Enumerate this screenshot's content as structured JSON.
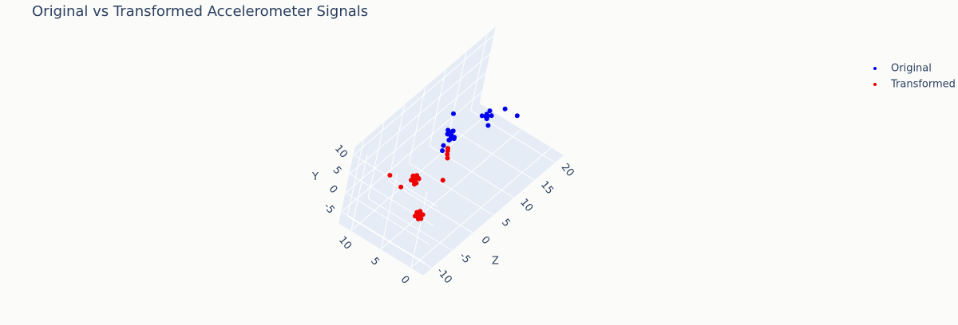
{
  "chart_data": {
    "type": "scatter3d",
    "title": "Original vs Transformed Accelerometer Signals",
    "yaxis_title": "Y",
    "zaxis_title": "Z",
    "xlim": [
      -2,
      12
    ],
    "ylim": [
      -8,
      12
    ],
    "zlim": [
      -12,
      22
    ],
    "xticks": [
      0,
      5,
      10
    ],
    "yticks": [
      -5,
      0,
      5,
      10
    ],
    "zticks": [
      -10,
      -5,
      0,
      5,
      10,
      15,
      20
    ],
    "series": [
      {
        "name": "Original",
        "color": "#0000ee",
        "x": [
          5,
          4.6,
          5.4,
          5.2,
          4.8,
          5.6,
          4.4,
          5.1,
          4.9,
          5.3,
          4.7,
          5.8,
          4.5,
          5.0,
          5,
          4.7,
          5.3,
          5.1,
          4.8,
          5.4,
          4.6,
          5.2,
          3,
          7,
          5,
          6,
          4,
          2
        ],
        "y": [
          9.3,
          9.0,
          9.6,
          8.8,
          9.8,
          9.1,
          9.5,
          9.9,
          8.7,
          9.4,
          9.2,
          9.6,
          8.9,
          10.2,
          5.8,
          6.1,
          5.5,
          6.3,
          5.4,
          6.0,
          5.7,
          5.2,
          8,
          10,
          3,
          4,
          11,
          6
        ],
        "z": [
          1.6,
          1.9,
          1.3,
          2.1,
          1.2,
          1.8,
          1.5,
          2.2,
          1.1,
          2.4,
          0.9,
          2.0,
          1.7,
          1.4,
          11.1,
          10.6,
          11.5,
          11.8,
          10.8,
          10.4,
          11.6,
          11.2,
          8,
          5,
          16,
          2,
          -2,
          14
        ]
      },
      {
        "name": "Transformed",
        "color": "#ee0000",
        "x": [
          6.4,
          6.0,
          6.8,
          6.5,
          6.1,
          6.9,
          6.3,
          6.7,
          5.9,
          6.6,
          6.2,
          7.0,
          3.6,
          3.2,
          4.0,
          3.8,
          3.4,
          4.1,
          3.1,
          3.7,
          5,
          5.3,
          5.6,
          5.9,
          8,
          9,
          4
        ],
        "y": [
          1.1,
          1.4,
          0.8,
          1.6,
          0.6,
          1.3,
          0.9,
          1.8,
          1.0,
          0.5,
          1.5,
          1.0,
          -3.6,
          -3.3,
          -3.9,
          -3.2,
          -4.0,
          -3.5,
          -3.8,
          -3.1,
          3,
          3.4,
          3.6,
          3.5,
          -2,
          2,
          0
        ],
        "z": [
          -3.5,
          -3.2,
          -3.8,
          -3.0,
          -4.0,
          -3.3,
          -2.8,
          -3.6,
          -3.9,
          -3.1,
          -4.2,
          -3.0,
          -5.7,
          -5.4,
          -6.0,
          -5.2,
          -6.1,
          -5.5,
          -5.9,
          -6.2,
          2,
          2.3,
          2.8,
          3.3,
          -4,
          -6,
          0
        ]
      }
    ]
  }
}
